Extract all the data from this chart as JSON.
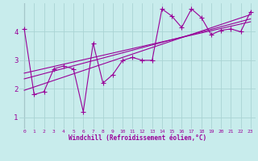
{
  "title": "",
  "xlabel": "Windchill (Refroidissement éolien,°C)",
  "ylabel": "",
  "bg_color": "#c8ecec",
  "line_color": "#990099",
  "grid_color": "#aad4d4",
  "axis_color": "#888899",
  "xlim": [
    -0.5,
    23.5
  ],
  "ylim": [
    0.6,
    5.0
  ],
  "xticks": [
    0,
    1,
    2,
    3,
    4,
    5,
    6,
    7,
    8,
    9,
    10,
    11,
    12,
    13,
    14,
    15,
    16,
    17,
    18,
    19,
    20,
    21,
    22,
    23
  ],
  "yticks": [
    1,
    2,
    3,
    4
  ],
  "data_x": [
    0,
    1,
    2,
    3,
    4,
    5,
    6,
    7,
    8,
    9,
    10,
    11,
    12,
    13,
    14,
    15,
    16,
    17,
    18,
    19,
    20,
    21,
    22,
    23
  ],
  "data_y": [
    4.1,
    1.8,
    1.9,
    2.7,
    2.8,
    2.7,
    1.2,
    3.6,
    2.2,
    2.5,
    3.0,
    3.1,
    3.0,
    3.0,
    4.8,
    4.55,
    4.15,
    4.8,
    4.5,
    3.9,
    4.05,
    4.1,
    4.0,
    4.7
  ],
  "trend1_x": [
    0,
    23
  ],
  "trend1_y": [
    2.35,
    4.45
  ],
  "trend2_x": [
    0,
    23
  ],
  "trend2_y": [
    1.95,
    4.6
  ],
  "trend3_x": [
    0,
    23
  ],
  "trend3_y": [
    2.55,
    4.35
  ],
  "marker_size": 4,
  "line_width": 0.8,
  "xlabel_fontsize": 5.5,
  "xtick_fontsize": 4.5,
  "ytick_fontsize": 6.5
}
